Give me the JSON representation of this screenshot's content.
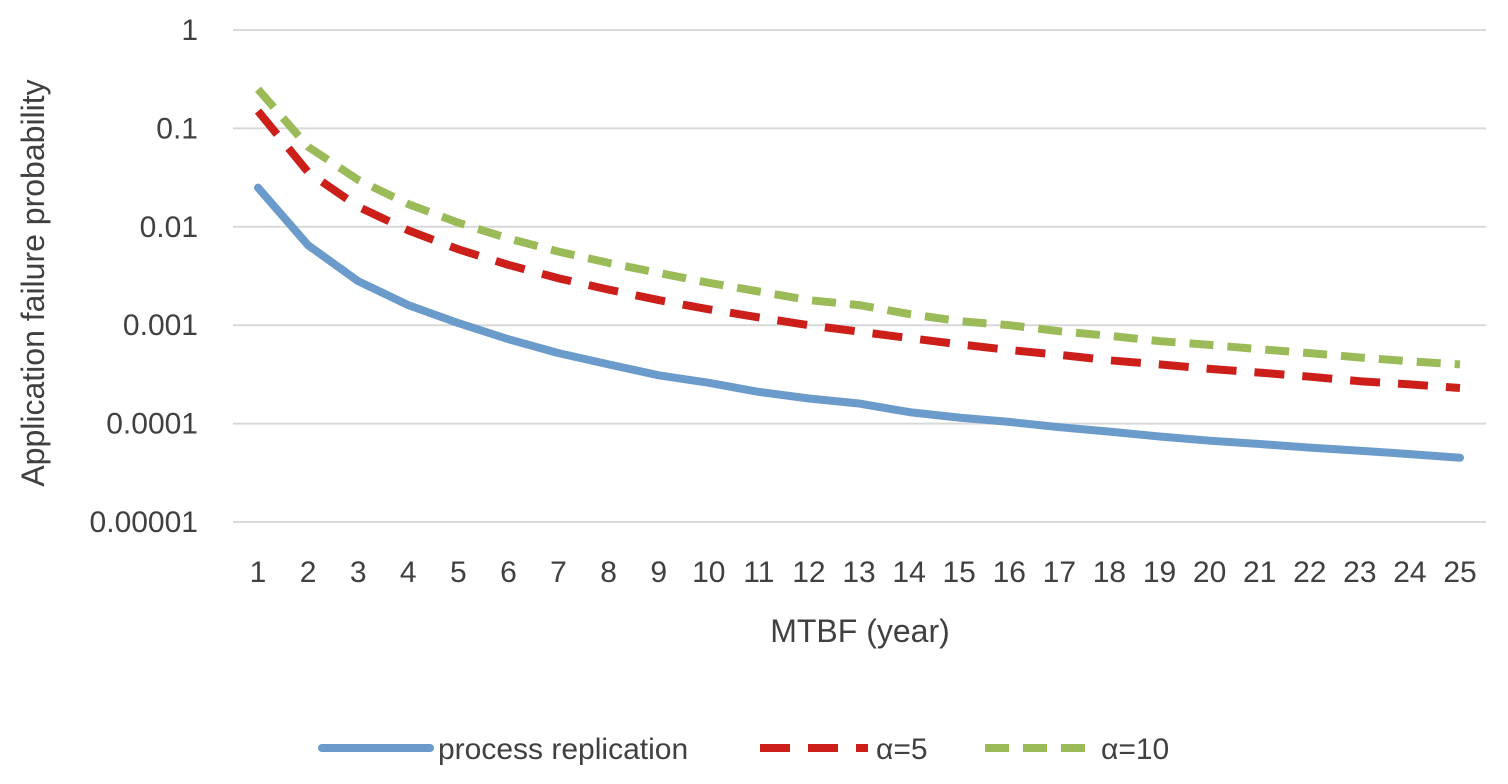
{
  "chart_data": {
    "type": "line",
    "title": "",
    "xlabel": "MTBF (year)",
    "ylabel": "Application failure probability",
    "y_scale": "log",
    "ylim": [
      1e-05,
      1
    ],
    "grid": true,
    "legend_position": "bottom",
    "y_tick_labels": [
      "1",
      "0.1",
      "0.01",
      "0.001",
      "0.0001",
      "0.00001"
    ],
    "y_tick_values": [
      1,
      0.1,
      0.01,
      0.001,
      0.0001,
      1e-05
    ],
    "categories": [
      "1",
      "2",
      "3",
      "4",
      "5",
      "6",
      "7",
      "8",
      "9",
      "10",
      "11",
      "12",
      "13",
      "14",
      "15",
      "16",
      "17",
      "18",
      "19",
      "20",
      "21",
      "22",
      "23",
      "24",
      "25"
    ],
    "series": [
      {
        "name": "process replication",
        "color": "#6a9bcb",
        "style": "solid",
        "values": [
          0.025,
          0.0065,
          0.0028,
          0.0016,
          0.00105,
          0.00072,
          0.00052,
          0.0004,
          0.00031,
          0.00026,
          0.00021,
          0.00018,
          0.00016,
          0.000131,
          0.000115,
          0.000104,
          9.2e-05,
          8.3e-05,
          7.4e-05,
          6.7e-05,
          6.2e-05,
          5.7e-05,
          5.3e-05,
          4.9e-05,
          4.5e-05
        ]
      },
      {
        "name": "α=5",
        "color": "#cc1f1a",
        "style": "dashed",
        "values": [
          0.15,
          0.036,
          0.016,
          0.0092,
          0.0059,
          0.0041,
          0.003,
          0.0023,
          0.0018,
          0.00145,
          0.0012,
          0.001,
          0.00086,
          0.00074,
          0.00064,
          0.00056,
          0.0005,
          0.00044,
          0.0004,
          0.00036,
          0.00033,
          0.0003,
          0.00027,
          0.00025,
          0.00023
        ]
      },
      {
        "name": "α=10",
        "color": "#9bbb59",
        "style": "dashed",
        "values": [
          0.25,
          0.065,
          0.03,
          0.017,
          0.011,
          0.0076,
          0.0056,
          0.0043,
          0.0034,
          0.0027,
          0.0022,
          0.0018,
          0.0016,
          0.0013,
          0.0011,
          0.001,
          0.00087,
          0.00078,
          0.00069,
          0.00063,
          0.00057,
          0.00052,
          0.00047,
          0.00043,
          0.0004
        ]
      }
    ]
  }
}
